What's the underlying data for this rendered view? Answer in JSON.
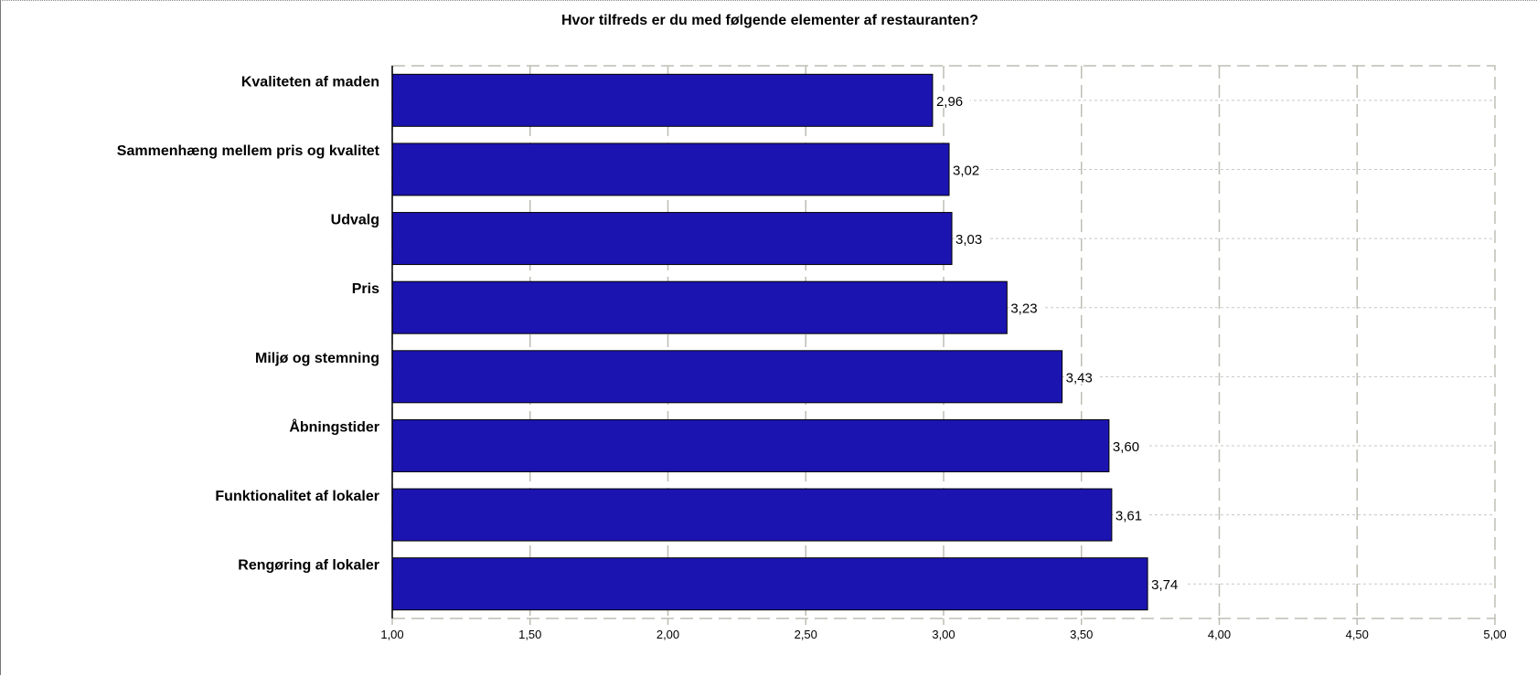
{
  "chart_data": {
    "type": "bar",
    "orientation": "horizontal",
    "title": "Hvor tilfreds er du med følgende elementer af restauranten?",
    "categories": [
      "Kvaliteten af maden",
      "Sammenhæng mellem pris og kvalitet",
      "Udvalg",
      "Pris",
      "Miljø og stemning",
      "Åbningstider",
      "Funktionalitet af lokaler",
      "Rengøring af lokaler"
    ],
    "values": [
      2.96,
      3.02,
      3.03,
      3.23,
      3.43,
      3.6,
      3.61,
      3.74
    ],
    "value_labels": [
      "2,96",
      "3,02",
      "3,03",
      "3,23",
      "3,43",
      "3,60",
      "3,61",
      "3,74"
    ],
    "xlim": [
      1.0,
      5.0
    ],
    "x_ticks": [
      1.0,
      1.5,
      2.0,
      2.5,
      3.0,
      3.5,
      4.0,
      4.5,
      5.0
    ],
    "x_tick_labels": [
      "1,00",
      "1,50",
      "2,00",
      "2,50",
      "3,00",
      "3,50",
      "4,00",
      "4,50",
      "5,00"
    ],
    "xlabel": "",
    "ylabel": "",
    "grid": true,
    "legend": false,
    "colors": {
      "bar_fill": "#1c14b0",
      "bar_stroke": "#000000",
      "grid_major": "#bdbdb3",
      "grid_minor": "#c8c8c8",
      "axis": "#000000"
    }
  }
}
